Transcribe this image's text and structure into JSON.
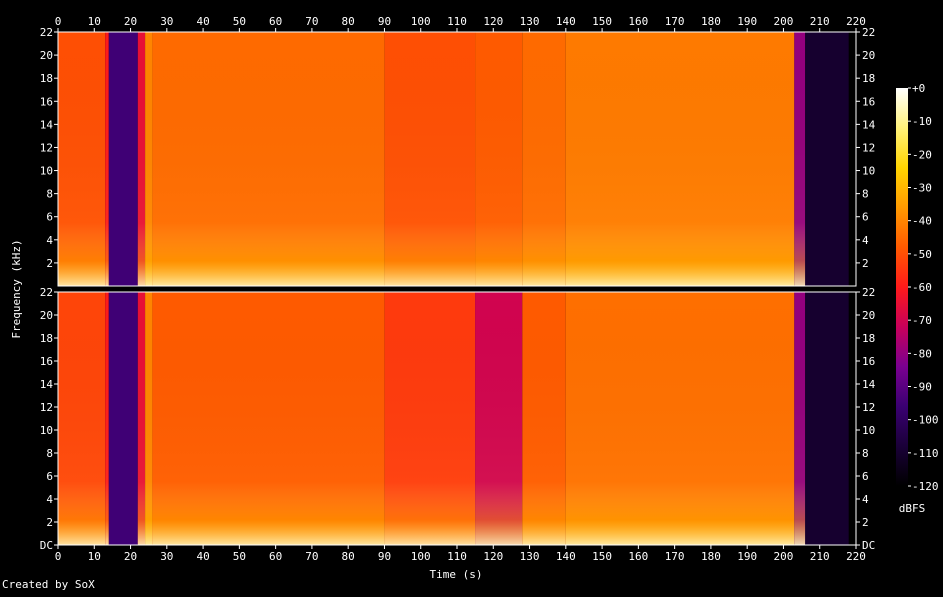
{
  "credit": "Created by SoX",
  "colors": {
    "background": "#000000",
    "axis": "#ffffff",
    "palette": [
      "#000000",
      "#1a0038",
      "#3a0072",
      "#7a0090",
      "#c8005a",
      "#ff1a1a",
      "#ff5a00",
      "#ff9a00",
      "#ffd400",
      "#fff27a",
      "#ffffff"
    ]
  },
  "chart_data": {
    "type": "heatmap",
    "title": "",
    "xlabel": "Time (s)",
    "ylabel": "Frequency (kHz)",
    "xlim": [
      0,
      220
    ],
    "ylim": [
      0,
      22
    ],
    "x_ticks": [
      "0",
      "10",
      "20",
      "30",
      "40",
      "50",
      "60",
      "70",
      "80",
      "90",
      "100",
      "110",
      "120",
      "130",
      "140",
      "150",
      "160",
      "170",
      "180",
      "190",
      "200",
      "210",
      "220"
    ],
    "y_ticks_top_channel": [
      "2",
      "4",
      "6",
      "8",
      "10",
      "12",
      "14",
      "16",
      "18",
      "20",
      "22"
    ],
    "y_ticks_bottom_channel": [
      "DC",
      "2",
      "4",
      "6",
      "8",
      "10",
      "12",
      "14",
      "16",
      "18",
      "20",
      "22"
    ],
    "channels": 2,
    "colorbar": {
      "label": "dBFS",
      "range": [
        -120,
        0
      ],
      "ticks": [
        "+0",
        "-10",
        "-20",
        "-30",
        "-40",
        "-50",
        "-60",
        "-70",
        "-80",
        "-90",
        "-100",
        "-110",
        "-120"
      ]
    },
    "segments_top": [
      {
        "t": [
          0,
          13
        ],
        "level": -50
      },
      {
        "t": [
          13,
          14
        ],
        "level": -60
      },
      {
        "t": [
          14,
          22
        ],
        "level": -95
      },
      {
        "t": [
          22,
          24
        ],
        "level": -65
      },
      {
        "t": [
          24,
          26
        ],
        "level": -40
      },
      {
        "t": [
          26,
          90
        ],
        "level": -45
      },
      {
        "t": [
          90,
          115
        ],
        "level": -50
      },
      {
        "t": [
          115,
          128
        ],
        "level": -48
      },
      {
        "t": [
          128,
          140
        ],
        "level": -45
      },
      {
        "t": [
          140,
          203
        ],
        "level": -42
      },
      {
        "t": [
          203,
          206
        ],
        "level": -80
      },
      {
        "t": [
          206,
          218
        ],
        "level": -110
      }
    ],
    "segments_bottom": [
      {
        "t": [
          0,
          13
        ],
        "level": -52
      },
      {
        "t": [
          13,
          14
        ],
        "level": -60
      },
      {
        "t": [
          14,
          22
        ],
        "level": -95
      },
      {
        "t": [
          22,
          24
        ],
        "level": -65
      },
      {
        "t": [
          24,
          26
        ],
        "level": -40
      },
      {
        "t": [
          26,
          90
        ],
        "level": -48
      },
      {
        "t": [
          90,
          115
        ],
        "level": -54
      },
      {
        "t": [
          115,
          128
        ],
        "level": -70
      },
      {
        "t": [
          128,
          140
        ],
        "level": -48
      },
      {
        "t": [
          140,
          203
        ],
        "level": -44
      },
      {
        "t": [
          203,
          206
        ],
        "level": -80
      },
      {
        "t": [
          206,
          218
        ],
        "level": -110
      }
    ]
  }
}
